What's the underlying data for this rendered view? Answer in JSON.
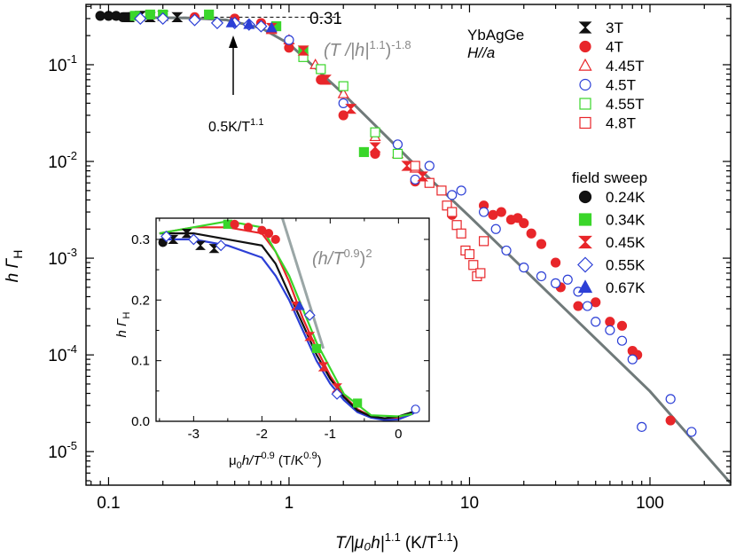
{
  "colors": {
    "red": "#e8262a",
    "blue": "#2c3fd6",
    "green": "#3ad62a",
    "black": "#111111",
    "gray": "#707a7a",
    "light_gray": "#9aa6a6"
  },
  "chart_data": [
    {
      "id": "main",
      "type": "scatter",
      "scale": "log-log",
      "xlabel": {
        "main": "T/|μ₀h|",
        "sup": "1.1",
        "unit": "(K/T",
        "unit_sup": "1.1",
        "unit_end": ")"
      },
      "ylabel": {
        "main": "h Γ",
        "sub": "H"
      },
      "xlim": [
        0.075,
        280
      ],
      "ylim": [
        4.5e-06,
        0.42
      ],
      "xticks": [
        {
          "value": 0.1,
          "label": "0.1"
        },
        {
          "value": 1,
          "label": "1"
        },
        {
          "value": 10,
          "label": "10"
        },
        {
          "value": 100,
          "label": "100"
        }
      ],
      "yticks": [
        {
          "value": 1e-05,
          "base": "10",
          "exp": "-5"
        },
        {
          "value": 0.0001,
          "base": "10",
          "exp": "-4"
        },
        {
          "value": 0.001,
          "base": "10",
          "exp": "-3"
        },
        {
          "value": 0.01,
          "base": "10",
          "exp": "-2"
        },
        {
          "value": 0.1,
          "base": "10",
          "exp": "-1"
        }
      ],
      "sample": {
        "name": "YbAgGe",
        "field_dir": "H//a"
      },
      "annotations": {
        "plateau_value": "0.31",
        "plateau_y": 0.31,
        "plateau_x_end": 0.98,
        "crossover_label": "0.5K/T",
        "crossover_sup": "1.1",
        "crossover_x": 0.5,
        "scaling_law": {
          "pre": "(T /|h|",
          "sup1": "1.1",
          "mid": ")",
          "sup2": "-1.8"
        }
      },
      "fit_line": {
        "x": [
          0.1,
          0.28,
          0.45,
          0.7,
          1,
          2,
          5,
          10,
          30,
          100,
          280
        ],
        "y": [
          0.31,
          0.305,
          0.29,
          0.24,
          0.165,
          0.05,
          0.0092,
          0.0027,
          0.00037,
          4.2e-05,
          4.7e-06
        ]
      },
      "legend_temperature_sweeps": [
        {
          "label": "3T",
          "color": "black",
          "marker": "bowtie",
          "filled": true
        },
        {
          "label": "4T",
          "color": "red",
          "marker": "circle",
          "filled": true
        },
        {
          "label": "4.45T",
          "color": "red",
          "marker": "triangle-up",
          "filled": false
        },
        {
          "label": "4.5T",
          "color": "blue",
          "marker": "circle",
          "filled": false
        },
        {
          "label": "4.55T",
          "color": "green",
          "marker": "square",
          "filled": false
        },
        {
          "label": "4.8T",
          "color": "red",
          "marker": "square",
          "filled": false
        }
      ],
      "legend_field_sweep_title": "field sweep",
      "legend_field_sweeps": [
        {
          "label": "0.24K",
          "color": "black",
          "marker": "circle",
          "filled": true
        },
        {
          "label": "0.34K",
          "color": "green",
          "marker": "square",
          "filled": true
        },
        {
          "label": "0.45K",
          "color": "red",
          "marker": "bowtie",
          "filled": true
        },
        {
          "label": "0.55K",
          "color": "blue",
          "marker": "diamond",
          "filled": false
        },
        {
          "label": "0.67K",
          "color": "blue",
          "marker": "triangle-up",
          "filled": true
        }
      ],
      "series": [
        {
          "name": "0.24K",
          "color": "black",
          "marker": "circle",
          "filled": true,
          "x": [
            0.09,
            0.1,
            0.11,
            0.12,
            0.13
          ],
          "y": [
            0.32,
            0.32,
            0.32,
            0.31,
            0.31
          ]
        },
        {
          "name": "3T",
          "color": "black",
          "marker": "bowtie",
          "filled": true,
          "x": [
            0.13,
            0.15,
            0.17,
            0.2,
            0.24
          ],
          "y": [
            0.31,
            0.32,
            0.31,
            0.32,
            0.31
          ]
        },
        {
          "name": "0.34K",
          "color": "green",
          "marker": "square",
          "filled": true,
          "x": [
            0.14,
            0.17,
            0.2,
            0.36,
            0.85,
            1.2,
            2.6
          ],
          "y": [
            0.32,
            0.33,
            0.33,
            0.33,
            0.25,
            0.14,
            0.0125
          ]
        },
        {
          "name": "4T",
          "color": "red",
          "marker": "circle",
          "filled": true,
          "x": [
            0.3,
            0.5,
            0.7,
            1.0,
            1.5,
            2.0,
            3.0,
            5.0,
            8.0,
            12.0,
            13.5,
            15.0,
            17.0,
            18.5,
            20.0,
            22.0,
            25.0,
            30.0,
            32.0,
            40.0,
            50.0,
            60.0,
            70.0,
            80.0,
            85.0,
            130.0
          ],
          "y": [
            0.31,
            0.3,
            0.27,
            0.15,
            0.07,
            0.03,
            0.012,
            0.0062,
            0.0028,
            0.0035,
            0.0028,
            0.003,
            0.0025,
            0.0026,
            0.0023,
            0.0018,
            0.0014,
            0.0009,
            0.0005,
            0.00032,
            0.00035,
            0.00022,
            0.0002,
            0.00011,
            0.0001,
            2.1e-05
          ]
        },
        {
          "name": "4.45T",
          "color": "red",
          "marker": "triangle-up",
          "filled": false,
          "x": [
            0.8,
            1.0,
            1.4,
            2.0,
            3.0,
            4.0,
            5.0
          ],
          "y": [
            0.23,
            0.18,
            0.1,
            0.05,
            0.018,
            0.012,
            0.0085
          ]
        },
        {
          "name": "4.5T",
          "color": "blue",
          "marker": "circle",
          "filled": false,
          "x": [
            1.0,
            2.0,
            4.0,
            5.0,
            6.0,
            8.0,
            9.0,
            12.0,
            14.0,
            16.0,
            20.0,
            25.0,
            30.0,
            35.0,
            40.0,
            45.0,
            50.0,
            60.0,
            70.0,
            80.0,
            90.0,
            130.0,
            170.0
          ],
          "y": [
            0.18,
            0.04,
            0.015,
            0.0065,
            0.009,
            0.0045,
            0.005,
            0.003,
            0.002,
            0.0012,
            0.0008,
            0.00065,
            0.00055,
            0.0006,
            0.00045,
            0.00032,
            0.00022,
            0.00018,
            0.00014,
            9e-05,
            1.8e-05,
            3.5e-05,
            1.6e-05
          ]
        },
        {
          "name": "4.55T",
          "color": "green",
          "marker": "square",
          "filled": false,
          "x": [
            1.2,
            1.5,
            2.0,
            3.0,
            4.0
          ],
          "y": [
            0.12,
            0.09,
            0.06,
            0.02,
            0.012
          ]
        },
        {
          "name": "4.8T",
          "color": "red",
          "marker": "square",
          "filled": false,
          "x": [
            5.0,
            6.0,
            7.0,
            7.5,
            8.0,
            8.5,
            9.0,
            9.5,
            10.0,
            10.5,
            11.0,
            11.5,
            12.0
          ],
          "y": [
            0.009,
            0.006,
            0.005,
            0.0035,
            0.003,
            0.0022,
            0.0018,
            0.0012,
            0.0011,
            0.00085,
            0.00065,
            0.0007,
            0.0015
          ]
        },
        {
          "name": "0.45K",
          "color": "red",
          "marker": "bowtie",
          "filled": true,
          "x": [
            0.8,
            1.2,
            1.6,
            2.2,
            3.0,
            4.5,
            5.5
          ],
          "y": [
            0.24,
            0.14,
            0.07,
            0.035,
            0.014,
            0.009,
            0.007
          ]
        },
        {
          "name": "0.55K",
          "color": "blue",
          "marker": "diamond",
          "filled": false,
          "x": [
            0.15,
            0.2,
            0.3,
            0.4,
            0.5,
            0.6,
            0.7
          ],
          "y": [
            0.3,
            0.3,
            0.29,
            0.27,
            0.27,
            0.26,
            0.25
          ]
        },
        {
          "name": "0.67K",
          "color": "blue",
          "marker": "triangle-up",
          "filled": true,
          "x": [
            0.48,
            0.6,
            0.8
          ],
          "y": [
            0.27,
            0.26,
            0.24
          ]
        }
      ]
    },
    {
      "id": "inset",
      "type": "scatter",
      "scale": "linear",
      "xlabel": {
        "pre": "μ",
        "sub": "0",
        "mid": "h/T",
        "sup": "0.9",
        "unit": " (T/K",
        "unit_sup": "0.9",
        "unit_end": ")"
      },
      "ylabel": {
        "main": "h Γ",
        "sub": "H"
      },
      "xlim": [
        -3.55,
        0.45
      ],
      "ylim": [
        0,
        0.335
      ],
      "xticks": [
        {
          "value": -3,
          "label": "-3"
        },
        {
          "value": -2,
          "label": "-2"
        },
        {
          "value": -1,
          "label": "-1"
        },
        {
          "value": 0,
          "label": "0"
        }
      ],
      "yticks": [
        {
          "value": 0.0,
          "label": "0.0"
        },
        {
          "value": 0.1,
          "label": "0.1"
        },
        {
          "value": 0.2,
          "label": "0.2"
        },
        {
          "value": 0.3,
          "label": "0.3"
        }
      ],
      "scaling_law": {
        "pre": "(h/T",
        "sup": "0.9",
        "post": ")",
        "sup2": "2"
      },
      "guide_line": {
        "x": [
          -1.7,
          -1.1
        ],
        "y": [
          0.335,
          0.12
        ]
      },
      "curves": [
        {
          "color": "red",
          "x": [
            -3.5,
            -3.0,
            -2.5,
            -2.0,
            -1.8,
            -1.6,
            -1.4,
            -1.2,
            -1.0,
            -0.8,
            -0.6,
            -0.4,
            -0.2,
            0.0,
            0.2,
            0.3
          ],
          "y": [
            0.31,
            0.32,
            0.32,
            0.31,
            0.28,
            0.23,
            0.17,
            0.12,
            0.075,
            0.042,
            0.02,
            0.008,
            0.004,
            0.006,
            0.012,
            0.02
          ]
        },
        {
          "color": "blue",
          "x": [
            -3.5,
            -3.0,
            -2.5,
            -2.0,
            -1.8,
            -1.6,
            -1.4,
            -1.2,
            -1.0,
            -0.8,
            -0.6,
            -0.4,
            -0.2,
            0.0,
            0.2,
            0.3
          ],
          "y": [
            0.3,
            0.3,
            0.29,
            0.27,
            0.24,
            0.2,
            0.15,
            0.1,
            0.062,
            0.035,
            0.015,
            0.006,
            0.002,
            0.003,
            0.012,
            0.02
          ]
        },
        {
          "color": "black",
          "x": [
            -3.5,
            -3.0,
            -2.5,
            -2.0,
            -1.8,
            -1.6,
            -1.4,
            -1.2,
            -1.0,
            -0.8,
            -0.6,
            -0.4,
            -0.2,
            0.0,
            0.2
          ],
          "y": [
            0.31,
            0.31,
            0.3,
            0.29,
            0.26,
            0.21,
            0.16,
            0.11,
            0.07,
            0.04,
            0.018,
            0.008,
            0.005,
            0.008,
            0.015
          ]
        },
        {
          "color": "green",
          "x": [
            -3.5,
            -2.5,
            -2.0,
            -1.6,
            -1.2,
            -0.8,
            -0.4,
            0.0,
            0.2
          ],
          "y": [
            0.31,
            0.33,
            0.32,
            0.24,
            0.13,
            0.045,
            0.01,
            0.008,
            0.012
          ]
        }
      ],
      "series": [
        {
          "name": "0.24K",
          "color": "black",
          "marker": "circle",
          "filled": true,
          "x": [
            -3.45
          ],
          "y": [
            0.295
          ]
        },
        {
          "name": "3T",
          "color": "black",
          "marker": "bowtie",
          "filled": true,
          "x": [
            -3.3,
            -3.1,
            -2.9,
            -2.7
          ],
          "y": [
            0.3,
            0.31,
            0.29,
            0.285
          ]
        },
        {
          "name": "0.34K",
          "color": "green",
          "marker": "square",
          "filled": true,
          "x": [
            -2.5,
            -1.2,
            -0.6
          ],
          "y": [
            0.325,
            0.12,
            0.03
          ]
        },
        {
          "name": "4T",
          "color": "red",
          "marker": "circle",
          "filled": true,
          "x": [
            -2.4,
            -2.2,
            -2.0,
            -1.9,
            -1.8
          ],
          "y": [
            0.325,
            0.32,
            0.315,
            0.31,
            0.3
          ]
        },
        {
          "name": "0.45K",
          "color": "red",
          "marker": "bowtie",
          "filled": true,
          "x": [
            -1.5,
            -1.3,
            -1.1,
            -0.9
          ],
          "y": [
            0.19,
            0.14,
            0.09,
            0.055
          ]
        },
        {
          "name": "0.55K",
          "color": "blue",
          "marker": "diamond",
          "filled": false,
          "x": [
            -3.4,
            -3.0,
            -2.6,
            -1.3,
            -0.9
          ],
          "y": [
            0.305,
            0.3,
            0.29,
            0.175,
            0.045
          ]
        },
        {
          "name": "0.67K",
          "color": "blue",
          "marker": "triangle-up",
          "filled": true,
          "x": [
            -1.45
          ],
          "y": [
            0.19
          ]
        },
        {
          "name": "4.5T",
          "color": "blue",
          "marker": "circle",
          "filled": false,
          "x": [
            0.25
          ],
          "y": [
            0.02
          ]
        }
      ]
    }
  ]
}
